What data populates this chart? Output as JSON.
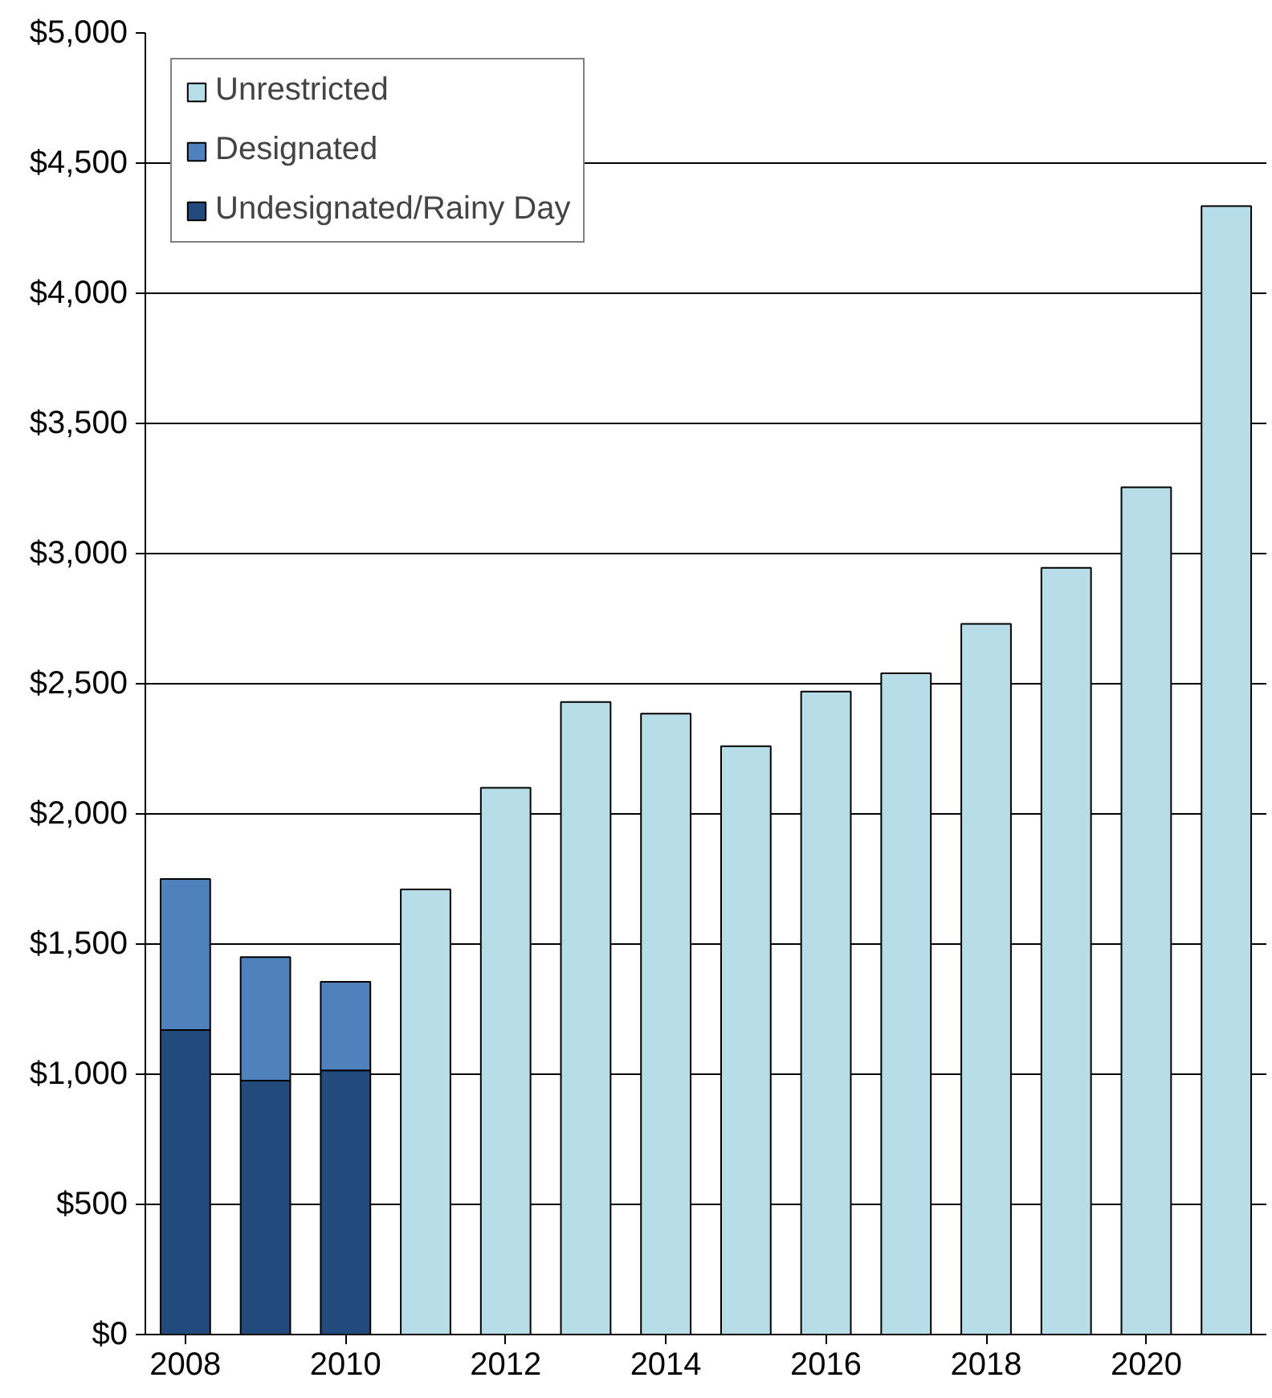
{
  "chart_data": {
    "type": "bar",
    "stacked": true,
    "x": [
      2008,
      2009,
      2010,
      2011,
      2012,
      2013,
      2014,
      2015,
      2016,
      2017,
      2018,
      2019,
      2020,
      2021
    ],
    "series": [
      {
        "name": "Undesignated/Rainy Day",
        "color": "#234a7c",
        "values": [
          1170,
          975,
          1015,
          null,
          null,
          null,
          null,
          null,
          null,
          null,
          null,
          null,
          null,
          null
        ]
      },
      {
        "name": "Designated",
        "color": "#4f81bd",
        "values": [
          580,
          475,
          340,
          null,
          null,
          null,
          null,
          null,
          null,
          null,
          null,
          null,
          null,
          null
        ]
      },
      {
        "name": "Unrestricted",
        "color": "#b7dde8",
        "values": [
          null,
          null,
          null,
          1710,
          2100,
          2430,
          2385,
          2260,
          2470,
          2540,
          2730,
          2945,
          3255,
          4335
        ]
      }
    ],
    "xlim": [
      2007.5,
      2021.5
    ],
    "xticks": [
      2008,
      2010,
      2012,
      2014,
      2016,
      2018,
      2020
    ],
    "ylim": [
      0,
      5000
    ],
    "yticks": [
      {
        "value": 0,
        "label": "$0"
      },
      {
        "value": 500,
        "label": "$500"
      },
      {
        "value": 1000,
        "label": "$1,000"
      },
      {
        "value": 1500,
        "label": "$1,500"
      },
      {
        "value": 2000,
        "label": "$2,000"
      },
      {
        "value": 2500,
        "label": "$2,500"
      },
      {
        "value": 3000,
        "label": "$3,000"
      },
      {
        "value": 3500,
        "label": "$3,500"
      },
      {
        "value": 4000,
        "label": "$4,000"
      },
      {
        "value": 4500,
        "label": "$4,500"
      },
      {
        "value": 5000,
        "label": "$5,000"
      }
    ],
    "grid": "y",
    "legend": "top left"
  }
}
